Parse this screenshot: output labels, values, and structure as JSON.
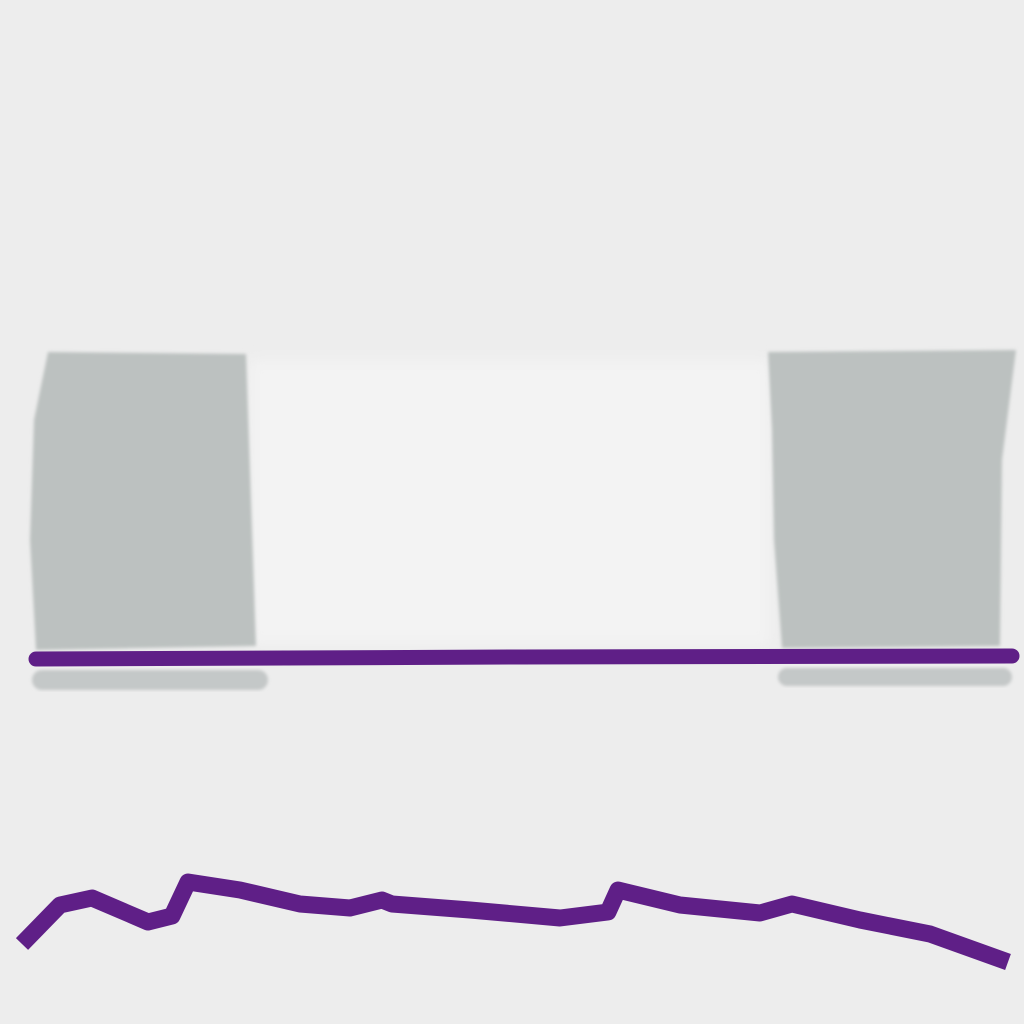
{
  "colors": {
    "background": "#ededed",
    "block": "#bcc1c0",
    "block_shadow": "#c4c8c8",
    "stroke": "#5f1f87",
    "highlight": "#f3f3f3"
  },
  "icons": {
    "left_block": "gray-rectangle-icon",
    "right_block": "gray-rectangle-icon",
    "horizon_line": "purple-line-icon",
    "wavy_line": "purple-wavy-line-icon"
  }
}
